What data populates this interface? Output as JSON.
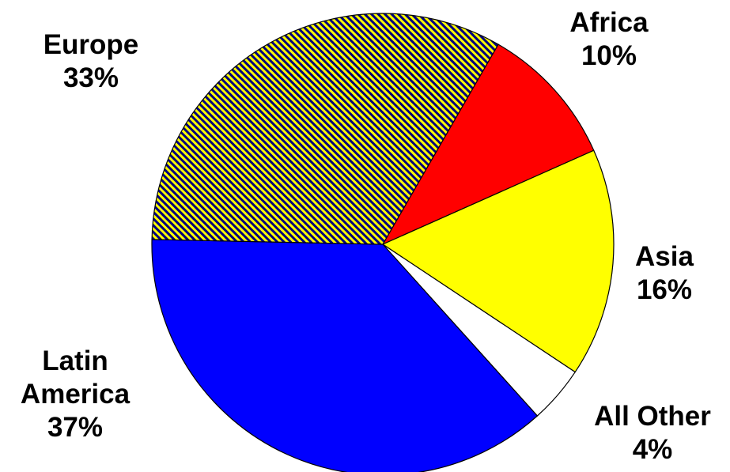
{
  "chart_data": {
    "type": "pie",
    "title": "",
    "slices": [
      {
        "name": "Africa",
        "value": 10,
        "label": "10%",
        "color": "#ff0000"
      },
      {
        "name": "Asia",
        "value": 16,
        "label": "16%",
        "color": "#ffff00"
      },
      {
        "name": "All Other",
        "value": 4,
        "label": "4%",
        "color": "#ffffff"
      },
      {
        "name": "Latin America",
        "value": 37,
        "label": "37%",
        "color": "#0000ff"
      },
      {
        "name": "Europe",
        "value": 33,
        "label": "33%",
        "color": "#ffff00",
        "pattern": "diagonal-stripes",
        "pattern_color": "#000080"
      }
    ],
    "labels": {
      "europe": {
        "line1": "Europe",
        "line2": "33%"
      },
      "africa": {
        "line1": "Africa",
        "line2": "10%"
      },
      "asia": {
        "line1": "Asia",
        "line2": "16%"
      },
      "other": {
        "line1": "All Other",
        "line2": "4%"
      },
      "latin": {
        "line1": "Latin",
        "line2": "America",
        "line3": "37%"
      }
    },
    "legend": "none"
  }
}
